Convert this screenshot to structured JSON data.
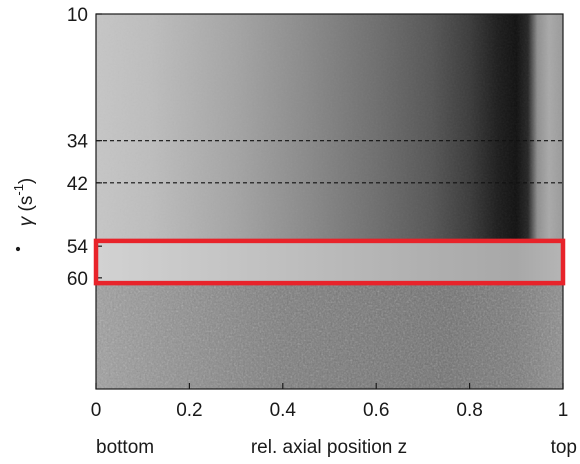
{
  "chart_data": {
    "type": "heatmap",
    "colormap": "grayscale",
    "xlabel": "rel. axial position z",
    "xlabel_left": "bottom",
    "xlabel_right": "top",
    "ylabel": "γ̇ (s⁻¹)",
    "ylabel_parts": {
      "symbol": "γ",
      "unit_open": " (s",
      "exponent": "-1",
      "unit_close": ")"
    },
    "xlim": [
      0,
      1
    ],
    "x_ticks": [
      {
        "value": 0,
        "label": "0"
      },
      {
        "value": 0.2,
        "label": "0.2"
      },
      {
        "value": 0.4,
        "label": "0.4"
      },
      {
        "value": 0.6,
        "label": "0.6"
      },
      {
        "value": 0.8,
        "label": "0.8"
      },
      {
        "value": 1,
        "label": "1"
      }
    ],
    "y_ticks": [
      {
        "value": 10,
        "label": "10"
      },
      {
        "value": 34,
        "label": "34"
      },
      {
        "value": 42,
        "label": "42"
      },
      {
        "value": 54,
        "label": "54"
      },
      {
        "value": 60,
        "label": "60"
      }
    ],
    "ylim": [
      10,
      80
    ],
    "y_direction": "increasing-downward",
    "dashed_reference_lines": [
      34,
      42
    ],
    "regions": [
      {
        "y_from": 10,
        "y_to": 54,
        "pattern": "gradient light at z=0 to black near z=0.88, bright band near top"
      },
      {
        "y_from": 54,
        "y_to": 60,
        "pattern": "light gray band, highlighted"
      },
      {
        "y_from": 60,
        "y_to": 80,
        "pattern": "noisy speckle texture"
      }
    ],
    "highlight_box": {
      "y_from": 53,
      "y_to": 61,
      "x_from": 0,
      "x_to": 1,
      "color": "#e8232a"
    }
  }
}
